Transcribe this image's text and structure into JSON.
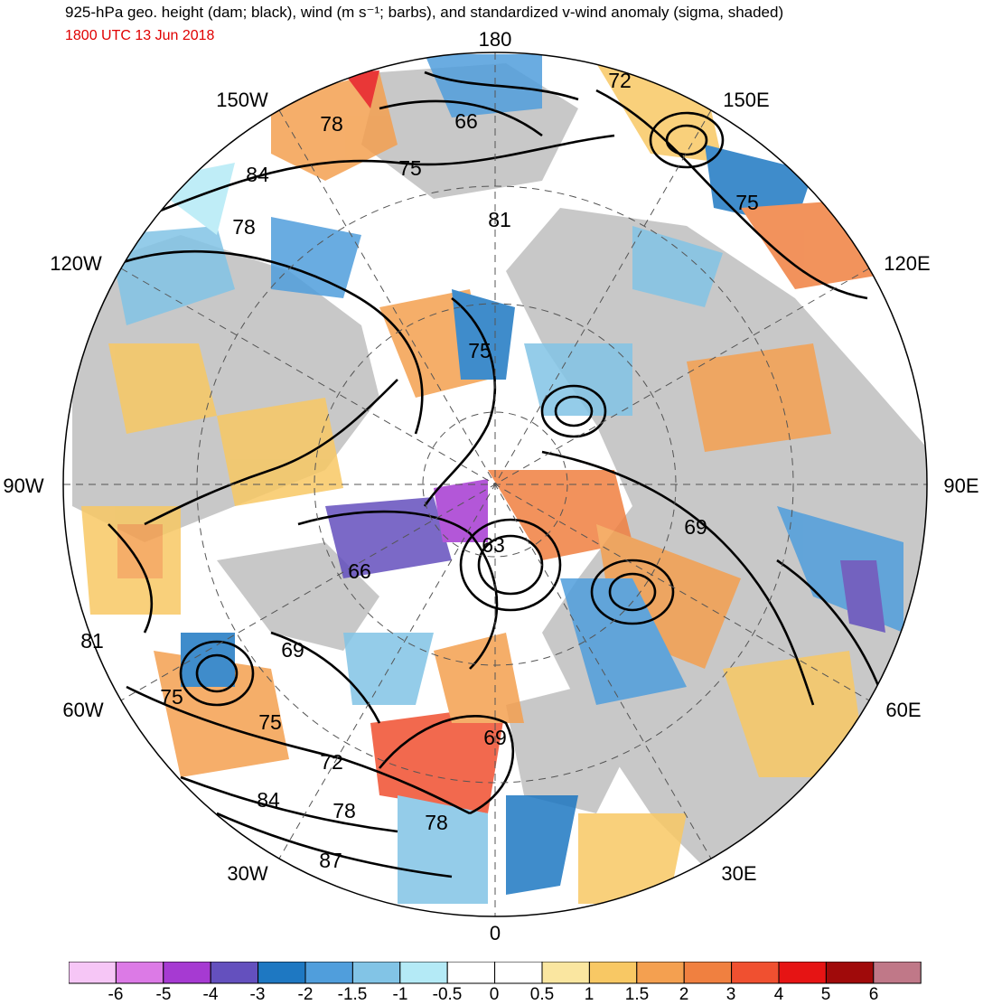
{
  "header": {
    "title": "925-hPa geo. height (dam; black), wind (m s⁻¹; barbs), and standardized v-wind anomaly (sigma, shaded)",
    "valid_time": "1800 UTC 13 Jun 2018"
  },
  "colors": {
    "valid_time": "#e00000",
    "land": "#c8c8c8",
    "contour": "#000000",
    "ocean": "#ffffff"
  },
  "map": {
    "projection": "north polar stereographic",
    "longitude_labels": [
      "180",
      "150E",
      "120E",
      "90E",
      "60E",
      "30E",
      "0",
      "30W",
      "60W",
      "90W",
      "120W",
      "150W"
    ],
    "height_contour_labels": [
      "78",
      "66",
      "72",
      "75",
      "84",
      "81",
      "75",
      "78",
      "75",
      "63",
      "69",
      "66",
      "69",
      "81",
      "75",
      "75",
      "72",
      "84",
      "78",
      "69",
      "78",
      "87"
    ]
  },
  "colorbar": {
    "tick_labels": [
      "-6",
      "-5",
      "-4",
      "-3",
      "-2",
      "-1.5",
      "-1",
      "-0.5",
      "0",
      "0.5",
      "1",
      "1.5",
      "2",
      "3",
      "4",
      "5",
      "6"
    ],
    "bins": [
      {
        "color": "#f6c6f6"
      },
      {
        "color": "#dc7ae6"
      },
      {
        "color": "#a63ad2"
      },
      {
        "color": "#6450be"
      },
      {
        "color": "#1e78c2"
      },
      {
        "color": "#509edc"
      },
      {
        "color": "#82c4e6"
      },
      {
        "color": "#b4eaf6"
      },
      {
        "color": "#ffffff"
      },
      {
        "color": "#ffffff"
      },
      {
        "color": "#fae6a0"
      },
      {
        "color": "#f8c864"
      },
      {
        "color": "#f4a050"
      },
      {
        "color": "#f08040"
      },
      {
        "color": "#f05030"
      },
      {
        "color": "#e61414"
      },
      {
        "color": "#a00a0a"
      },
      {
        "color": "#c07888"
      }
    ]
  }
}
